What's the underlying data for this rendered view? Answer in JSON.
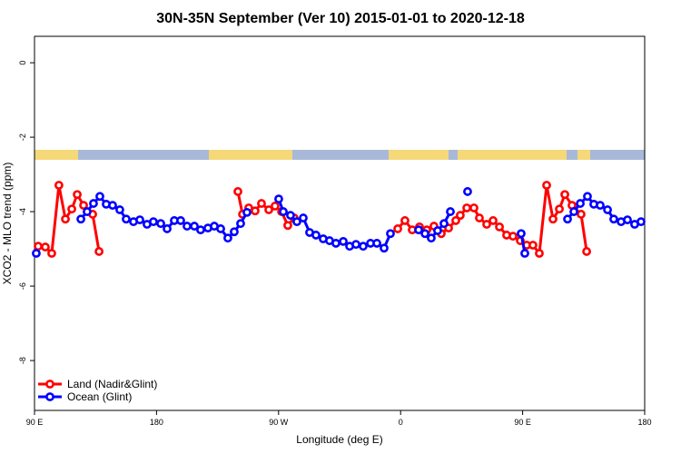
{
  "chart_data": {
    "type": "line",
    "title": "30N-35N September (Ver 10)   2015-01-01 to 2020-12-18",
    "xlabel": "Longitude (deg E)",
    "ylabel": "XCO2 - MLO trend (ppm)",
    "xlim": [
      90,
      540
    ],
    "ylim": [
      0.71,
      -9.34
    ],
    "xticks": [
      {
        "value": 90,
        "label": "90 E"
      },
      180,
      {
        "value": 270,
        "label": "90 W"
      },
      {
        "value": 360,
        "label": "0"
      },
      {
        "value": 450,
        "label": "90 E"
      },
      {
        "value": 540,
        "label": "180"
      }
    ],
    "yticks": [
      0,
      -2,
      -4,
      -6,
      -8
    ],
    "legend": "lower left",
    "series": [
      {
        "name": "Land (Nadir&Glint)",
        "color": "#ff0000",
        "x": [
          92.7,
          98,
          102.7,
          108,
          112.8,
          117.5,
          121.5,
          126.2,
          132.9,
          137.6,
          null,
          240,
          243.4,
          248,
          252.7,
          257.4,
          262.8,
          267.4,
          272.2,
          276.8,
          281.5,
          null,
          357.9,
          363.2,
          368.6,
          373.9,
          379.3,
          384.6,
          390,
          395.4,
          400.7,
          404,
          408.8,
          414.1,
          418.1,
          423.5,
          428.2,
          432.9,
          438.2,
          442.9,
          448.3,
          453,
          457.6,
          462.3,
          467.7,
          472.4,
          477.1,
          481.1,
          486.4,
          493.1,
          497.2
        ],
        "values": [
          -4.93,
          -4.95,
          -5.12,
          -3.29,
          -4.2,
          -3.93,
          -3.54,
          -3.83,
          -4.07,
          -5.07,
          null,
          -3.46,
          -4.07,
          -3.9,
          -3.98,
          -3.78,
          -3.95,
          -3.85,
          -4.0,
          -4.37,
          -4.17,
          null,
          -4.46,
          -4.24,
          -4.49,
          -4.41,
          -4.49,
          -4.39,
          -4.59,
          -4.44,
          -4.24,
          -4.1,
          -3.9,
          -3.9,
          -4.17,
          -4.34,
          -4.24,
          -4.41,
          -4.63,
          -4.66,
          -4.78,
          -4.9,
          -4.9,
          -5.12,
          -3.29,
          -4.2,
          -3.93,
          -3.54,
          -3.83,
          -4.07,
          -5.07
        ]
      },
      {
        "name": "Ocean (Glint)",
        "color": "#0000ff",
        "x": [
          91.3,
          null,
          124.2,
          128.8,
          133.5,
          138.2,
          142.9,
          147.6,
          152.9,
          157.6,
          163,
          167.7,
          173,
          177.7,
          183.1,
          187.8,
          193.1,
          197.8,
          202.5,
          207.9,
          212.5,
          217.9,
          222.6,
          227.3,
          232.6,
          237.3,
          242,
          246.7,
          null,
          270.1,
          273.5,
          278.8,
          283.5,
          288.2,
          292.9,
          297.6,
          302.9,
          307.6,
          312.3,
          317.7,
          322.4,
          327.1,
          332.4,
          337.8,
          342.5,
          347.8,
          352.5,
          null,
          373.3,
          378,
          382.6,
          387.3,
          392,
          396.7,
          null,
          409.4,
          null,
          448.9,
          451.6,
          null,
          483.1,
          487.8,
          492.5,
          497.8,
          502.5,
          507.2,
          512.6,
          517.2,
          522.6,
          527.3,
          532.6,
          537.3
        ],
        "values": [
          -5.12,
          null,
          -4.2,
          -4.0,
          -3.78,
          -3.59,
          -3.8,
          -3.83,
          -3.95,
          -4.2,
          -4.27,
          -4.22,
          -4.34,
          -4.27,
          -4.32,
          -4.46,
          -4.24,
          -4.24,
          -4.39,
          -4.39,
          -4.49,
          -4.44,
          -4.39,
          -4.46,
          -4.71,
          -4.54,
          -4.32,
          -4.02,
          null,
          -3.66,
          -4.0,
          -4.1,
          -4.27,
          -4.17,
          -4.56,
          -4.63,
          -4.73,
          -4.78,
          -4.85,
          -4.8,
          -4.93,
          -4.88,
          -4.93,
          -4.85,
          -4.85,
          -4.98,
          -4.59,
          null,
          -4.49,
          -4.59,
          -4.71,
          -4.51,
          -4.32,
          -4.0,
          null,
          -3.46,
          null,
          -4.59,
          -5.12,
          null,
          -4.2,
          -4.0,
          -3.78,
          -3.59,
          -3.8,
          -3.83,
          -3.95,
          -4.2,
          -4.27,
          -4.22,
          -4.34,
          -4.27
        ]
      }
    ]
  }
}
